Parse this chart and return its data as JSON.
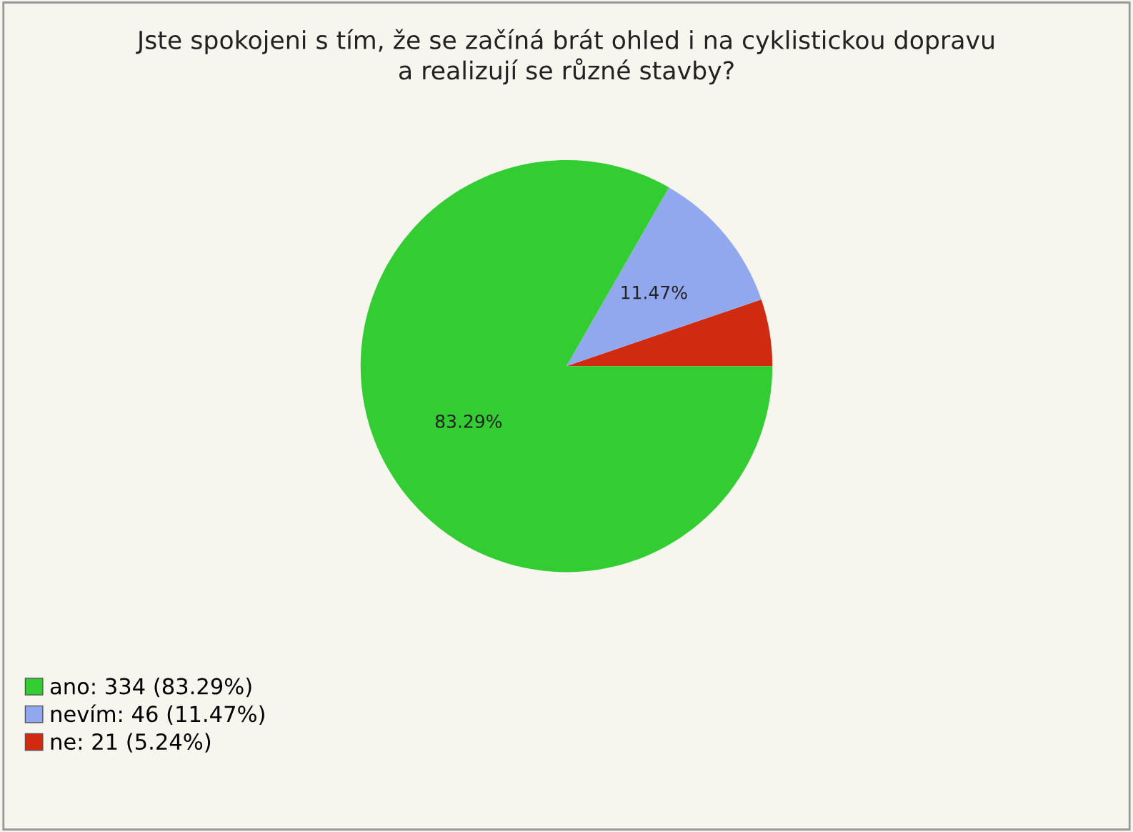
{
  "chart_data": {
    "type": "pie",
    "title": "Jste spokojeni s tím, že se začíná brát ohled i na cyklistickou dopravu\na realizují se různé stavby?",
    "categories": [
      "ano: 334 (83.29%)",
      "nevím: 46 (11.47%)",
      "ne: 21 (5.24%)"
    ],
    "values": [
      83.29,
      11.47,
      5.24
    ],
    "colors": [
      "#33cc33",
      "#92a8ee",
      "#d02a10"
    ],
    "value_labels": [
      "83.29%",
      "11.47%",
      null
    ],
    "legend": "bottom left"
  }
}
